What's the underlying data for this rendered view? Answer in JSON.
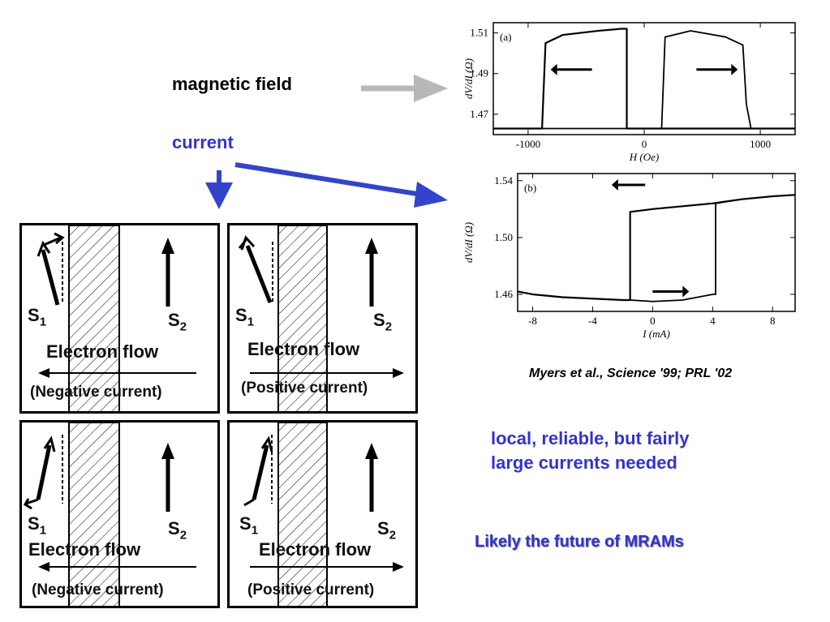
{
  "labels": {
    "magnetic_field": "magnetic field",
    "current": "current",
    "citation": "Myers et al., Science '99; PRL '02",
    "note_line1": "local,  reliable, but fairly",
    "note_line2": "large currents needed",
    "future": "Likely the future of MRAMs"
  },
  "colors": {
    "blue_text": "#3333cc",
    "arrow_blue": "#3344cc",
    "arrow_gray": "#b8b8b8"
  },
  "panels": [
    {
      "s1": "S",
      "s1_sub": "1",
      "s2": "S",
      "s2_sub": "2",
      "flow": "Electron flow",
      "current": "(Negative current)"
    },
    {
      "s1": "S",
      "s1_sub": "1",
      "s2": "S",
      "s2_sub": "2",
      "flow": "Electron flow",
      "current": "(Positive current)"
    },
    {
      "s1": "S",
      "s1_sub": "1",
      "s2": "S",
      "s2_sub": "2",
      "flow": "Electron flow",
      "current": "(Negative current)"
    },
    {
      "s1": "S",
      "s1_sub": "1",
      "s2": "S",
      "s2_sub": "2",
      "flow": "Electron flow",
      "current": "(Positive current)"
    }
  ],
  "chart_data": [
    {
      "type": "line",
      "panel_label": "(a)",
      "xlabel": "H (Oe)",
      "ylabel": "dV/dI (Ω)",
      "xlim": [
        -1300,
        1300
      ],
      "ylim": [
        1.46,
        1.515
      ],
      "xticks": [
        "-1000",
        "0",
        "1000"
      ],
      "xtick_values": [
        -1000,
        0,
        1000
      ],
      "yticks": [
        "1.51",
        "1.49",
        "1.47"
      ],
      "ytick_values": [
        1.51,
        1.49,
        1.47
      ],
      "series": [
        {
          "values_x": [
            -1300,
            -1000,
            -880,
            -850,
            -700,
            -400,
            -200,
            -150,
            -150,
            -120,
            0,
            100,
            200,
            400,
            600,
            800,
            900,
            950,
            1000,
            1300
          ],
          "values_y": [
            1.463,
            1.463,
            1.463,
            1.505,
            1.509,
            1.511,
            1.512,
            1.512,
            1.463,
            1.463,
            1.463,
            1.463,
            1.463,
            1.463,
            1.463,
            1.463,
            1.463,
            1.463,
            1.463,
            1.463
          ]
        },
        {
          "values_x": [
            -1300,
            -1000,
            -800,
            -500,
            -300,
            0,
            100,
            150,
            180,
            400,
            700,
            850,
            880,
            920,
            1000,
            1300
          ],
          "values_y": [
            1.463,
            1.463,
            1.463,
            1.463,
            1.463,
            1.463,
            1.463,
            1.463,
            1.508,
            1.511,
            1.508,
            1.504,
            1.475,
            1.463,
            1.463,
            1.463
          ]
        }
      ]
    },
    {
      "type": "line",
      "panel_label": "(b)",
      "xlabel": "I (mA)",
      "ylabel": "dV/dI (Ω)",
      "xlim": [
        -9,
        9.5
      ],
      "ylim": [
        1.448,
        1.545
      ],
      "xticks": [
        "-8",
        "-4",
        "0",
        "4",
        "8"
      ],
      "xtick_values": [
        -8,
        -4,
        0,
        4,
        8
      ],
      "yticks": [
        "1.54",
        "1.50",
        "1.46"
      ],
      "ytick_values": [
        1.54,
        1.5,
        1.46
      ],
      "series": [
        {
          "values_x": [
            -9,
            -8,
            -6,
            -4,
            -2,
            -1.5,
            -1.5,
            0,
            2,
            4,
            6,
            8,
            9.5
          ],
          "values_y": [
            1.462,
            1.46,
            1.458,
            1.457,
            1.456,
            1.456,
            1.518,
            1.52,
            1.522,
            1.524,
            1.527,
            1.529,
            1.53
          ]
        },
        {
          "values_x": [
            -1.5,
            0,
            2,
            4,
            4.2,
            4.2,
            6,
            8,
            9.5
          ],
          "values_y": [
            1.456,
            1.455,
            1.456,
            1.46,
            1.46,
            1.524,
            1.527,
            1.529,
            1.53
          ]
        }
      ]
    }
  ]
}
